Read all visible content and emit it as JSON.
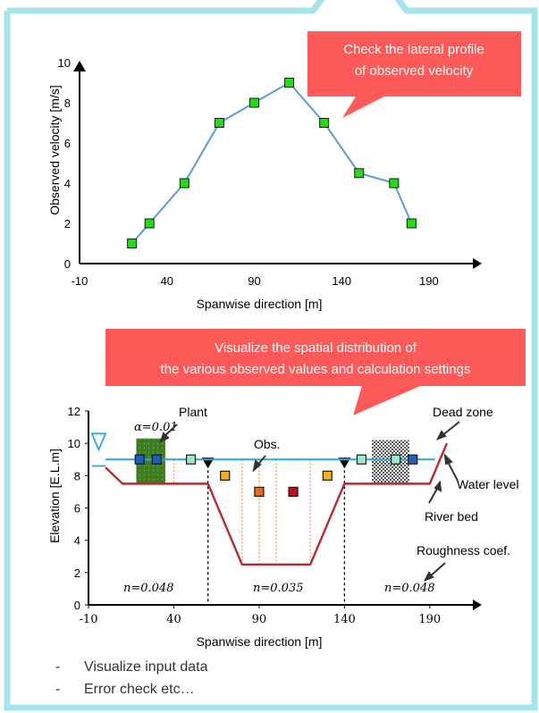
{
  "colors": {
    "frame": "#a6e4ec",
    "callout": "#ff5a5a",
    "line": "#5b9bd5",
    "marker_green": "#22dd11",
    "water": "#29a9df",
    "bed": "#b52b30",
    "plant": "#3e7c23"
  },
  "callouts": {
    "top_line1": "Check the lateral profile",
    "top_line2": "of observed velocity",
    "mid_line1": "Visualize the spatial distribution of",
    "mid_line2": "the various observed values and calculation settings"
  },
  "chart_data": [
    {
      "type": "line",
      "xlabel": "Spanwise direction [m]",
      "ylabel": "Observed velocity [m/s]",
      "xlim": [
        -10,
        210
      ],
      "ylim": [
        0,
        10
      ],
      "x_ticks": [
        -10,
        40,
        90,
        140,
        190
      ],
      "y_ticks": [
        0,
        2,
        4,
        6,
        8,
        10
      ],
      "grid": false,
      "series": [
        {
          "x": [
            20,
            30,
            50,
            70,
            90,
            110,
            130,
            150,
            170,
            180
          ],
          "y": [
            1,
            2,
            4,
            7,
            8,
            9,
            7,
            4.5,
            4,
            2
          ]
        }
      ]
    },
    {
      "type": "scatter",
      "xlabel": "Spanwise direction [m]",
      "ylabel": "Elevation [E.L.m]",
      "xlim": [
        -10,
        210
      ],
      "ylim": [
        0,
        12
      ],
      "x_ticks": [
        -10,
        40,
        90,
        140,
        190
      ],
      "y_ticks": [
        0,
        2,
        4,
        6,
        8,
        10,
        12
      ],
      "water_level": 9,
      "river_bed": {
        "x": [
          0,
          10,
          60,
          80,
          120,
          140,
          190,
          200
        ],
        "y": [
          8.5,
          7.5,
          7.5,
          2.5,
          2.5,
          7.5,
          7.5,
          10
        ]
      },
      "points": [
        {
          "x": 20,
          "y": 9,
          "color": "#1f5fbf"
        },
        {
          "x": 30,
          "y": 9,
          "color": "#1f5fbf"
        },
        {
          "x": 50,
          "y": 9,
          "color": "#a0e8c8"
        },
        {
          "x": 70,
          "y": 8,
          "color": "#f0b020"
        },
        {
          "x": 90,
          "y": 7,
          "color": "#e46c1a"
        },
        {
          "x": 110,
          "y": 7,
          "color": "#b5121b"
        },
        {
          "x": 130,
          "y": 8,
          "color": "#f0b020"
        },
        {
          "x": 150,
          "y": 9,
          "color": "#a0e8c8"
        },
        {
          "x": 170,
          "y": 9,
          "color": "#a0e8c8"
        },
        {
          "x": 180,
          "y": 9,
          "color": "#1f5fbf"
        }
      ],
      "section_dividers_x": [
        60,
        140
      ],
      "roughness": [
        "n=0.048",
        "n=0.035",
        "n=0.048"
      ],
      "alpha_label": "α=0.01",
      "annotations": {
        "plant": "Plant",
        "obs": "Obs.",
        "dead_zone": "Dead zone",
        "water_level": "Water level",
        "river_bed": "River bed",
        "roughness_coef": "Roughness coef."
      }
    }
  ],
  "bullets": [
    "Visualize input data",
    "Error check    etc…"
  ]
}
